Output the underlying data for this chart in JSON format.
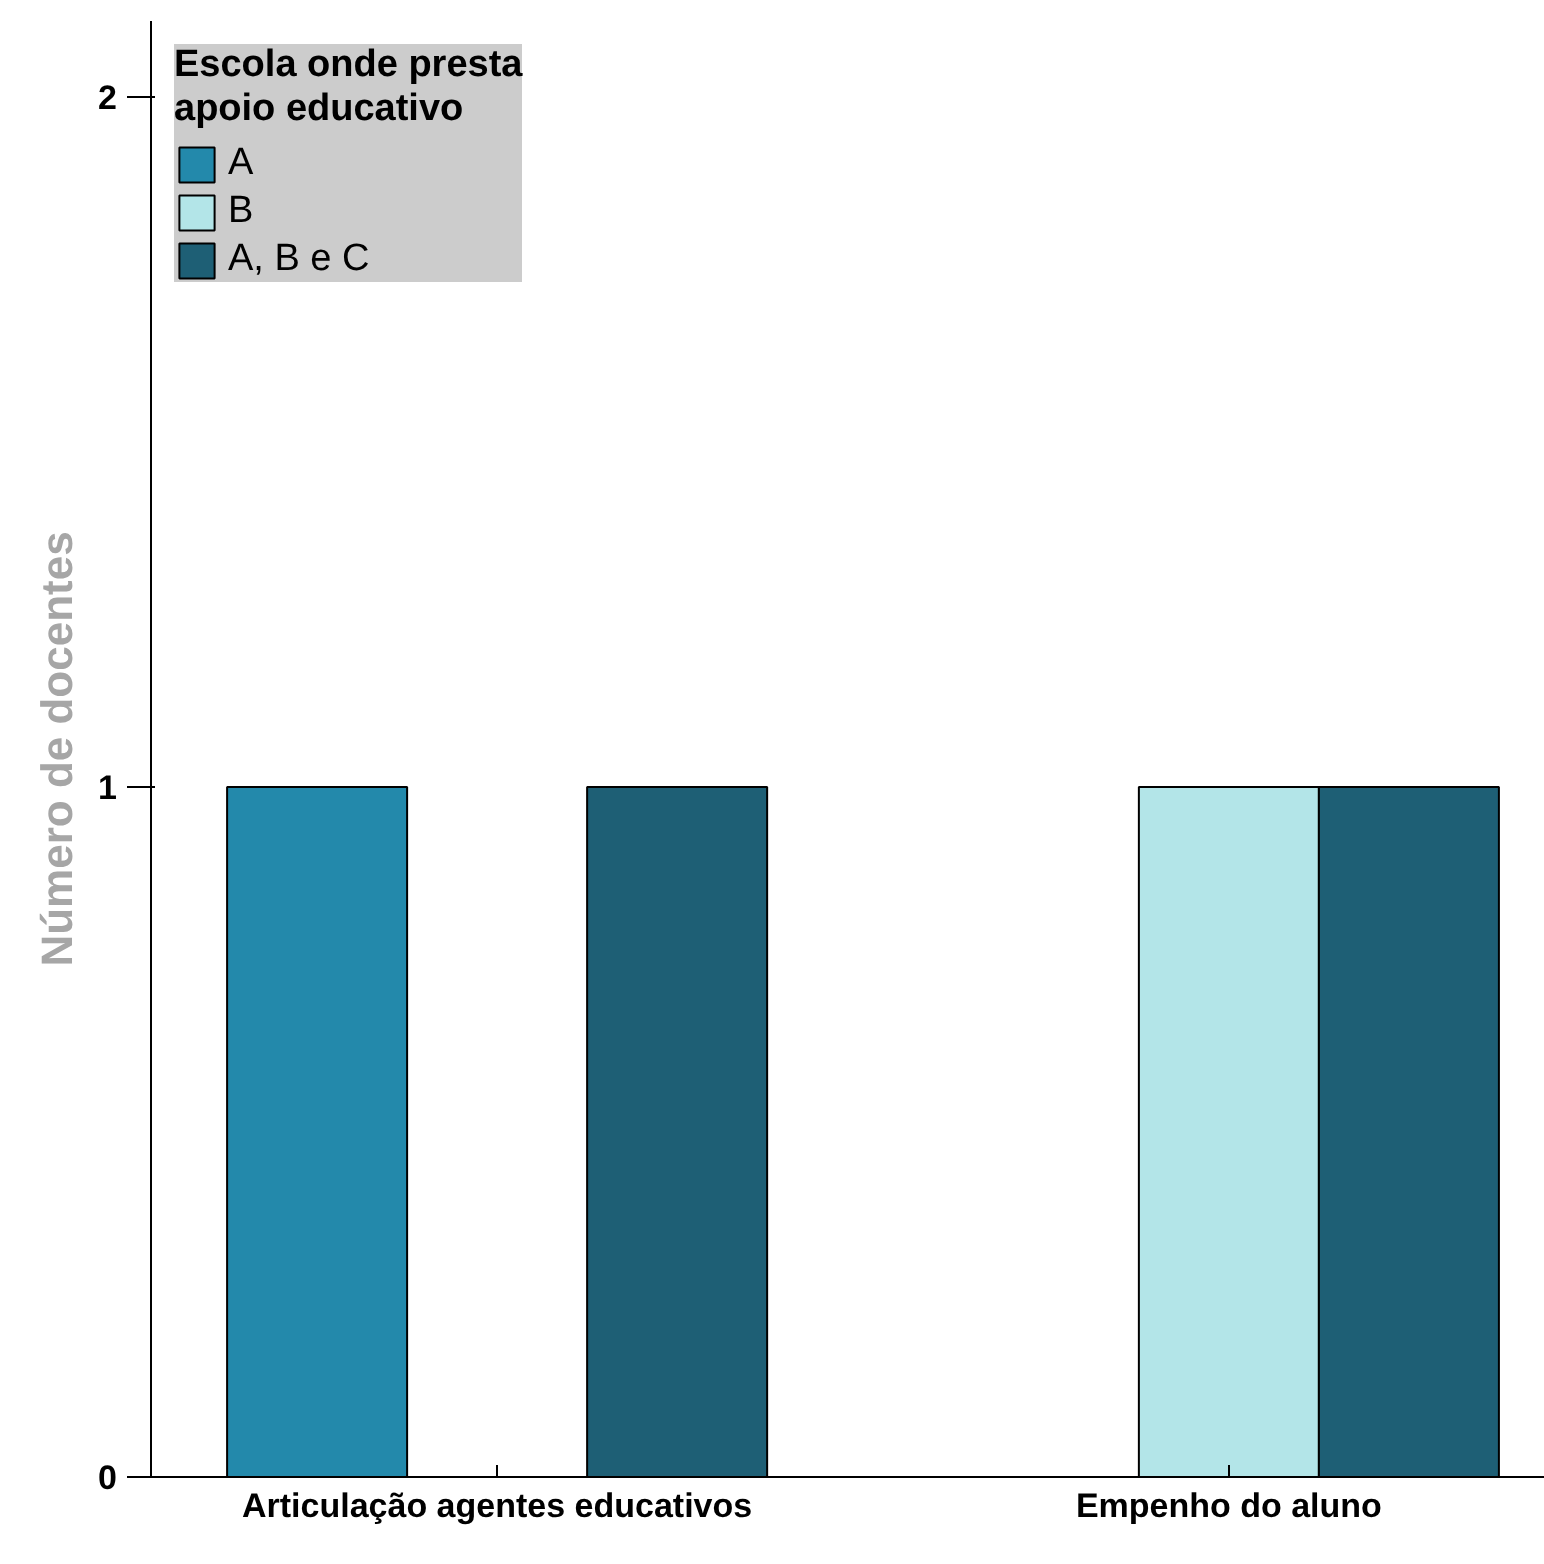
{
  "chart_data": {
    "type": "bar",
    "ylabel": "Número de docentes",
    "legend_title": "Escola onde presta\napoio educativo",
    "categories": [
      "Articulação agentes educativos",
      "Empenho do aluno"
    ],
    "series": [
      {
        "name": "A",
        "color": "#2389ab",
        "values": [
          1,
          null
        ]
      },
      {
        "name": "B",
        "color": "#b3e5e8",
        "values": [
          null,
          1
        ]
      },
      {
        "name": "A, B e C",
        "color": "#1e5f75",
        "values": [
          1,
          1
        ]
      }
    ],
    "ylim": [
      0,
      2.11
    ],
    "yticks": [
      0,
      1,
      2
    ],
    "grid": false,
    "legend": "top left"
  }
}
